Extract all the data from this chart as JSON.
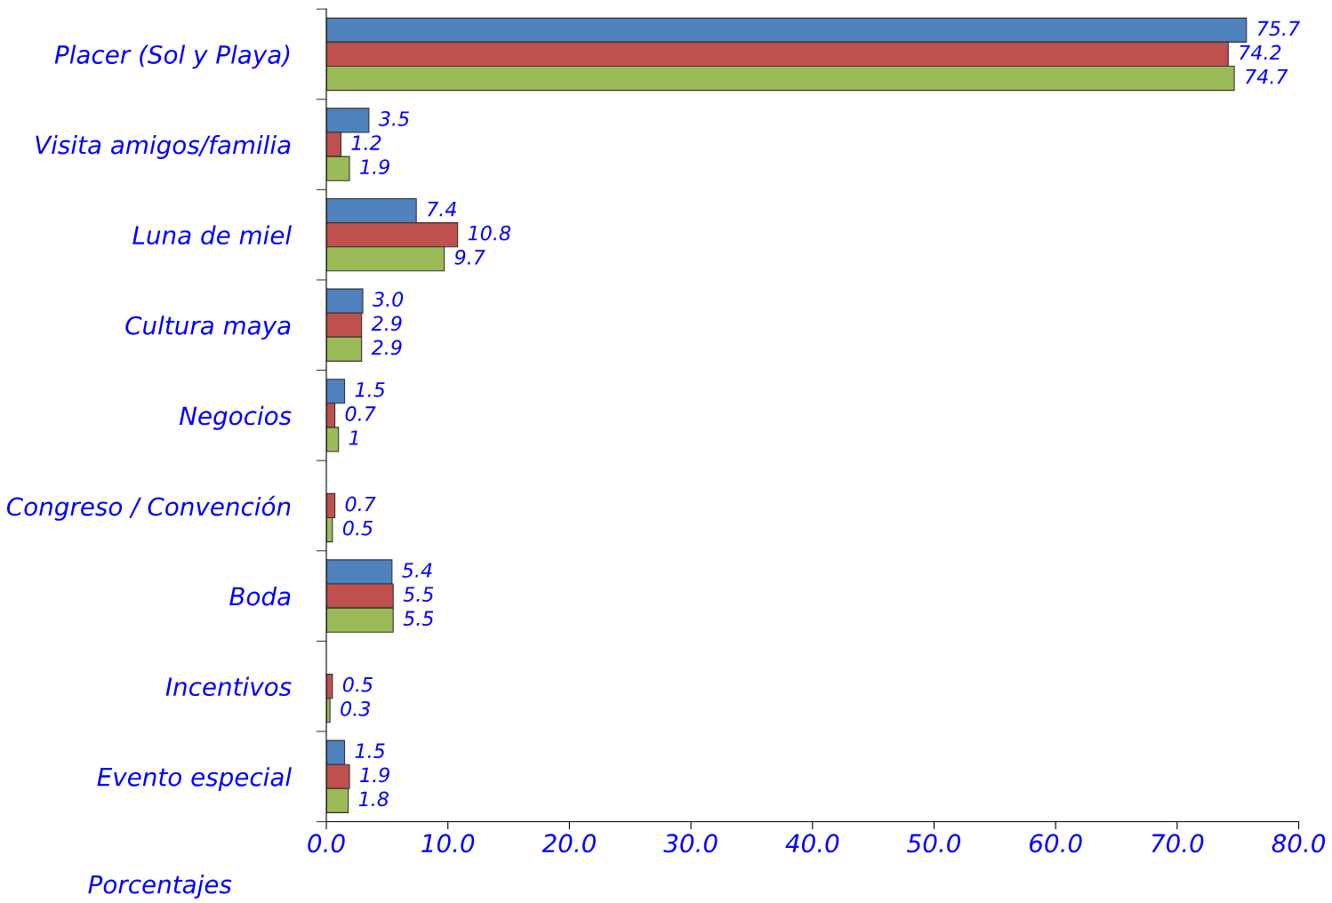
{
  "chart_data": {
    "type": "bar",
    "orientation": "horizontal",
    "xlabel": "Porcentajes",
    "categories": [
      "Placer (Sol y Playa)",
      "Visita amigos/familia",
      "Luna de miel",
      "Cultura maya",
      "Negocios",
      "Congreso / Convención",
      "Boda",
      "Incentivos",
      "Evento especial"
    ],
    "series": [
      {
        "color": "#4f81bd",
        "values": [
          75.7,
          3.5,
          7.4,
          3.0,
          1.5,
          null,
          5.4,
          null,
          1.5
        ],
        "value_labels": [
          "75.7",
          "3.5",
          "7.4",
          "3.0",
          "1.5",
          null,
          "5.4",
          null,
          "1.5"
        ]
      },
      {
        "color": "#c0504d",
        "values": [
          74.2,
          1.2,
          10.8,
          2.9,
          0.7,
          0.7,
          5.5,
          0.5,
          1.9
        ],
        "value_labels": [
          "74.2",
          "1.2",
          "10.8",
          "2.9",
          "0.7",
          "0.7",
          "5.5",
          "0.5",
          "1.9"
        ]
      },
      {
        "color": "#9bbb59",
        "values": [
          74.7,
          1.9,
          9.7,
          2.9,
          1,
          0.5,
          5.5,
          0.3,
          1.8
        ],
        "value_labels": [
          "74.7",
          "1.9",
          "9.7",
          "2.9",
          "1",
          "0.5",
          "5.5",
          "0.3",
          "1.8"
        ]
      }
    ],
    "xlim": [
      0,
      80
    ],
    "xticks": [
      {
        "value": 0,
        "label": "0.0"
      },
      {
        "value": 10,
        "label": "10.0"
      },
      {
        "value": 20,
        "label": "20.0"
      },
      {
        "value": 30,
        "label": "30.0"
      },
      {
        "value": 40,
        "label": "40.0"
      },
      {
        "value": 50,
        "label": "50.0"
      },
      {
        "value": 60,
        "label": "60.0"
      },
      {
        "value": 70,
        "label": "70.0"
      },
      {
        "value": 80,
        "label": "80.0"
      }
    ],
    "grid": false,
    "legend": false
  }
}
